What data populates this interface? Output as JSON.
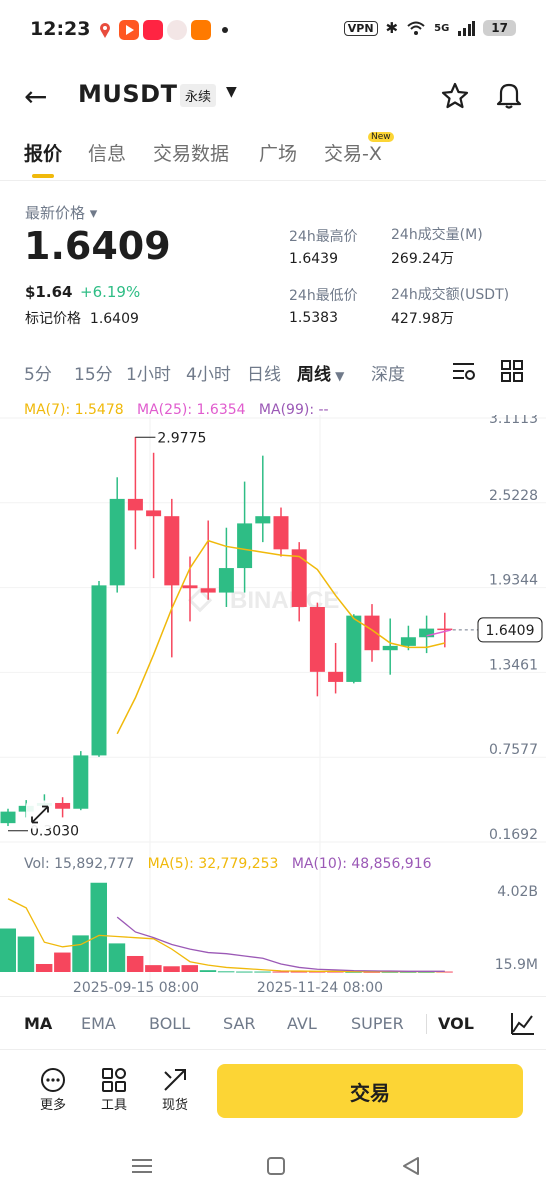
{
  "status_bar": {
    "time": "12:23",
    "vpn": "VPN",
    "network": "5G",
    "battery": "17"
  },
  "header": {
    "title": "MUSDT",
    "contract_type": "永续"
  },
  "tabs": [
    {
      "label": "报价",
      "active": true
    },
    {
      "label": "信息"
    },
    {
      "label": "交易数据"
    },
    {
      "label": "广场"
    },
    {
      "label": "交易-X",
      "badge": "New"
    }
  ],
  "price": {
    "last_price_label": "最新价格",
    "last_price": "1.6409",
    "usd_price": "$1.64",
    "change_pct": "+6.19%",
    "mark_label": "标记价格",
    "mark_price": "1.6409"
  },
  "stats": {
    "high_label": "24h最高价",
    "high": "1.6439",
    "low_label": "24h最低价",
    "low": "1.5383",
    "vol_label": "24h成交量(M)",
    "vol": "269.24万",
    "turnover_label": "24h成交额(USDT)",
    "turnover": "427.98万"
  },
  "intervals": [
    "5分",
    "15分",
    "1小时",
    "4小时",
    "日线",
    "周线",
    "深度"
  ],
  "active_interval": "周线",
  "ma_legend": {
    "ma7": "MA(7): 1.5478",
    "ma25": "MA(25): 1.6354",
    "ma99": "MA(99): --"
  },
  "chart_data": {
    "type": "candlestick",
    "y_ticks": [
      "3.1113",
      "2.5228",
      "1.9344",
      "1.3461",
      "0.7577",
      "0.1692"
    ],
    "x_ticks": [
      "2025-09-15 08:00",
      "2025-11-24 08:00"
    ],
    "high_marker": "2.9775",
    "low_marker": "0.3030",
    "current_price_tag": "1.6409",
    "watermark": "BINANCE",
    "candles": [
      {
        "o": 0.3,
        "h": 0.4,
        "l": 0.28,
        "c": 0.38
      },
      {
        "o": 0.38,
        "h": 0.46,
        "l": 0.34,
        "c": 0.42
      },
      {
        "o": 0.42,
        "h": 0.5,
        "l": 0.38,
        "c": 0.44
      },
      {
        "o": 0.44,
        "h": 0.48,
        "l": 0.34,
        "c": 0.4
      },
      {
        "o": 0.4,
        "h": 0.8,
        "l": 0.39,
        "c": 0.77
      },
      {
        "o": 0.77,
        "h": 1.98,
        "l": 0.76,
        "c": 1.95
      },
      {
        "o": 1.95,
        "h": 2.7,
        "l": 1.9,
        "c": 2.55
      },
      {
        "o": 2.55,
        "h": 2.98,
        "l": 2.2,
        "c": 2.47
      },
      {
        "o": 2.47,
        "h": 2.87,
        "l": 2.0,
        "c": 2.43
      },
      {
        "o": 2.43,
        "h": 2.55,
        "l": 1.45,
        "c": 1.95
      },
      {
        "o": 1.95,
        "h": 2.15,
        "l": 1.7,
        "c": 1.93
      },
      {
        "o": 1.93,
        "h": 2.4,
        "l": 1.85,
        "c": 1.9
      },
      {
        "o": 1.9,
        "h": 2.35,
        "l": 1.8,
        "c": 2.07
      },
      {
        "o": 2.07,
        "h": 2.67,
        "l": 1.9,
        "c": 2.38
      },
      {
        "o": 2.38,
        "h": 2.85,
        "l": 2.25,
        "c": 2.43
      },
      {
        "o": 2.43,
        "h": 2.49,
        "l": 2.15,
        "c": 2.2
      },
      {
        "o": 2.2,
        "h": 2.25,
        "l": 1.7,
        "c": 1.8
      },
      {
        "o": 1.8,
        "h": 1.83,
        "l": 1.18,
        "c": 1.35
      },
      {
        "o": 1.35,
        "h": 1.55,
        "l": 1.2,
        "c": 1.28
      },
      {
        "o": 1.28,
        "h": 1.75,
        "l": 1.27,
        "c": 1.74
      },
      {
        "o": 1.74,
        "h": 1.82,
        "l": 1.42,
        "c": 1.5
      },
      {
        "o": 1.5,
        "h": 1.72,
        "l": 1.33,
        "c": 1.53
      },
      {
        "o": 1.53,
        "h": 1.67,
        "l": 1.5,
        "c": 1.59
      },
      {
        "o": 1.59,
        "h": 1.74,
        "l": 1.48,
        "c": 1.65
      },
      {
        "o": 1.65,
        "h": 1.76,
        "l": 1.52,
        "c": 1.64
      }
    ],
    "ma7": [
      null,
      null,
      null,
      null,
      null,
      null,
      0.92,
      1.17,
      1.47,
      1.79,
      2.07,
      2.26,
      2.22,
      2.2,
      2.18,
      2.16,
      2.15,
      2.06,
      1.88,
      1.72,
      1.64,
      1.55,
      1.52,
      1.52,
      1.55
    ],
    "ma25": [
      null,
      null,
      null,
      null,
      null,
      null,
      null,
      null,
      null,
      null,
      null,
      null,
      null,
      null,
      null,
      null,
      null,
      null,
      null,
      null,
      null,
      null,
      null,
      null,
      1.64
    ],
    "volume_legend": {
      "vol": "Vol: 15,892,777",
      "ma5": "MA(5): 32,779,253",
      "ma10": "MA(10): 48,856,916"
    },
    "volume_ticks": [
      "4.02B",
      "15.9M"
    ],
    "volumes": [
      1.9,
      1.55,
      0.35,
      0.85,
      1.6,
      3.9,
      1.25,
      0.7,
      0.3,
      0.25,
      0.3,
      0.08,
      0.03,
      0.02,
      0.02,
      0.02,
      0.02,
      0.02,
      0.02,
      0.01,
      0.01,
      0.01,
      0.01,
      0.01,
      0.02
    ],
    "vol_dir": [
      "up",
      "up",
      "down",
      "down",
      "up",
      "up",
      "up",
      "down",
      "down",
      "down",
      "down",
      "up",
      "up",
      "up",
      "up",
      "down",
      "down",
      "down",
      "down",
      "up",
      "down",
      "up",
      "up",
      "up",
      "down"
    ],
    "vol_ma5": [
      3.2,
      2.8,
      1.3,
      1.1,
      1.2,
      1.6,
      1.55,
      1.5,
      1.45,
      1.0,
      0.45,
      0.3,
      0.2,
      0.15,
      0.1,
      0.05,
      0.04,
      0.03,
      0.03,
      0.02,
      0.02,
      0.02,
      0.02,
      0.02,
      0.02
    ],
    "vol_ma10": [
      null,
      null,
      null,
      null,
      null,
      null,
      2.4,
      1.75,
      1.5,
      1.2,
      1.0,
      0.85,
      0.8,
      0.7,
      0.6,
      0.35,
      0.2,
      0.12,
      0.09,
      0.06,
      0.05,
      0.04,
      0.03,
      0.03,
      0.03
    ]
  },
  "indicators": [
    "MA",
    "EMA",
    "BOLL",
    "SAR",
    "AVL",
    "SUPER",
    "VOL"
  ],
  "active_indicators": [
    "MA",
    "VOL"
  ],
  "actions": [
    {
      "label": "更多",
      "icon": "more-icon"
    },
    {
      "label": "工具",
      "icon": "tools-icon"
    },
    {
      "label": "现货",
      "icon": "spot-icon"
    }
  ],
  "trade_button": "交易",
  "colors": {
    "up": "#2ebd85",
    "down": "#f6465d",
    "ma7": "#f0b90b",
    "ma25": "#e05cce",
    "ma99": "#9b59b6",
    "accent": "#fcd535"
  }
}
